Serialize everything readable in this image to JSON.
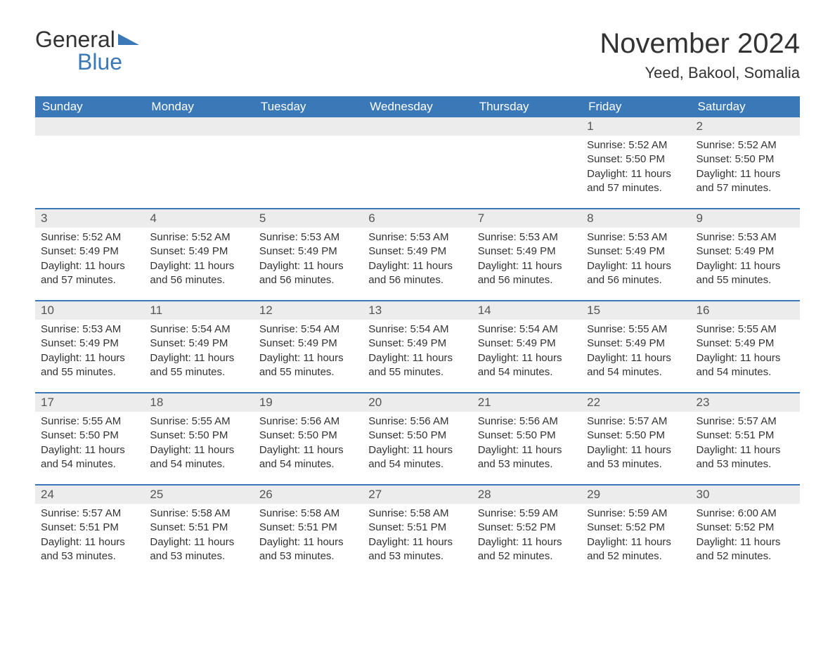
{
  "logo": {
    "line1": "General",
    "line2": "Blue",
    "accent_color": "#3a78b8"
  },
  "title": "November 2024",
  "location": "Yeed, Bakool, Somalia",
  "colors": {
    "header_bg": "#3a78b8",
    "header_text": "#ffffff",
    "daynum_bg": "#ececec",
    "daynum_text": "#555555",
    "body_text": "#333333",
    "row_divider": "#3a78b8",
    "page_bg": "#ffffff"
  },
  "day_labels": [
    "Sunday",
    "Monday",
    "Tuesday",
    "Wednesday",
    "Thursday",
    "Friday",
    "Saturday"
  ],
  "field_labels": {
    "sunrise": "Sunrise",
    "sunset": "Sunset",
    "daylight": "Daylight"
  },
  "weeks": [
    [
      null,
      null,
      null,
      null,
      null,
      {
        "n": "1",
        "sunrise": "5:52 AM",
        "sunset": "5:50 PM",
        "daylight": "11 hours and 57 minutes."
      },
      {
        "n": "2",
        "sunrise": "5:52 AM",
        "sunset": "5:50 PM",
        "daylight": "11 hours and 57 minutes."
      }
    ],
    [
      {
        "n": "3",
        "sunrise": "5:52 AM",
        "sunset": "5:49 PM",
        "daylight": "11 hours and 57 minutes."
      },
      {
        "n": "4",
        "sunrise": "5:52 AM",
        "sunset": "5:49 PM",
        "daylight": "11 hours and 56 minutes."
      },
      {
        "n": "5",
        "sunrise": "5:53 AM",
        "sunset": "5:49 PM",
        "daylight": "11 hours and 56 minutes."
      },
      {
        "n": "6",
        "sunrise": "5:53 AM",
        "sunset": "5:49 PM",
        "daylight": "11 hours and 56 minutes."
      },
      {
        "n": "7",
        "sunrise": "5:53 AM",
        "sunset": "5:49 PM",
        "daylight": "11 hours and 56 minutes."
      },
      {
        "n": "8",
        "sunrise": "5:53 AM",
        "sunset": "5:49 PM",
        "daylight": "11 hours and 56 minutes."
      },
      {
        "n": "9",
        "sunrise": "5:53 AM",
        "sunset": "5:49 PM",
        "daylight": "11 hours and 55 minutes."
      }
    ],
    [
      {
        "n": "10",
        "sunrise": "5:53 AM",
        "sunset": "5:49 PM",
        "daylight": "11 hours and 55 minutes."
      },
      {
        "n": "11",
        "sunrise": "5:54 AM",
        "sunset": "5:49 PM",
        "daylight": "11 hours and 55 minutes."
      },
      {
        "n": "12",
        "sunrise": "5:54 AM",
        "sunset": "5:49 PM",
        "daylight": "11 hours and 55 minutes."
      },
      {
        "n": "13",
        "sunrise": "5:54 AM",
        "sunset": "5:49 PM",
        "daylight": "11 hours and 55 minutes."
      },
      {
        "n": "14",
        "sunrise": "5:54 AM",
        "sunset": "5:49 PM",
        "daylight": "11 hours and 54 minutes."
      },
      {
        "n": "15",
        "sunrise": "5:55 AM",
        "sunset": "5:49 PM",
        "daylight": "11 hours and 54 minutes."
      },
      {
        "n": "16",
        "sunrise": "5:55 AM",
        "sunset": "5:49 PM",
        "daylight": "11 hours and 54 minutes."
      }
    ],
    [
      {
        "n": "17",
        "sunrise": "5:55 AM",
        "sunset": "5:50 PM",
        "daylight": "11 hours and 54 minutes."
      },
      {
        "n": "18",
        "sunrise": "5:55 AM",
        "sunset": "5:50 PM",
        "daylight": "11 hours and 54 minutes."
      },
      {
        "n": "19",
        "sunrise": "5:56 AM",
        "sunset": "5:50 PM",
        "daylight": "11 hours and 54 minutes."
      },
      {
        "n": "20",
        "sunrise": "5:56 AM",
        "sunset": "5:50 PM",
        "daylight": "11 hours and 54 minutes."
      },
      {
        "n": "21",
        "sunrise": "5:56 AM",
        "sunset": "5:50 PM",
        "daylight": "11 hours and 53 minutes."
      },
      {
        "n": "22",
        "sunrise": "5:57 AM",
        "sunset": "5:50 PM",
        "daylight": "11 hours and 53 minutes."
      },
      {
        "n": "23",
        "sunrise": "5:57 AM",
        "sunset": "5:51 PM",
        "daylight": "11 hours and 53 minutes."
      }
    ],
    [
      {
        "n": "24",
        "sunrise": "5:57 AM",
        "sunset": "5:51 PM",
        "daylight": "11 hours and 53 minutes."
      },
      {
        "n": "25",
        "sunrise": "5:58 AM",
        "sunset": "5:51 PM",
        "daylight": "11 hours and 53 minutes."
      },
      {
        "n": "26",
        "sunrise": "5:58 AM",
        "sunset": "5:51 PM",
        "daylight": "11 hours and 53 minutes."
      },
      {
        "n": "27",
        "sunrise": "5:58 AM",
        "sunset": "5:51 PM",
        "daylight": "11 hours and 53 minutes."
      },
      {
        "n": "28",
        "sunrise": "5:59 AM",
        "sunset": "5:52 PM",
        "daylight": "11 hours and 52 minutes."
      },
      {
        "n": "29",
        "sunrise": "5:59 AM",
        "sunset": "5:52 PM",
        "daylight": "11 hours and 52 minutes."
      },
      {
        "n": "30",
        "sunrise": "6:00 AM",
        "sunset": "5:52 PM",
        "daylight": "11 hours and 52 minutes."
      }
    ]
  ]
}
